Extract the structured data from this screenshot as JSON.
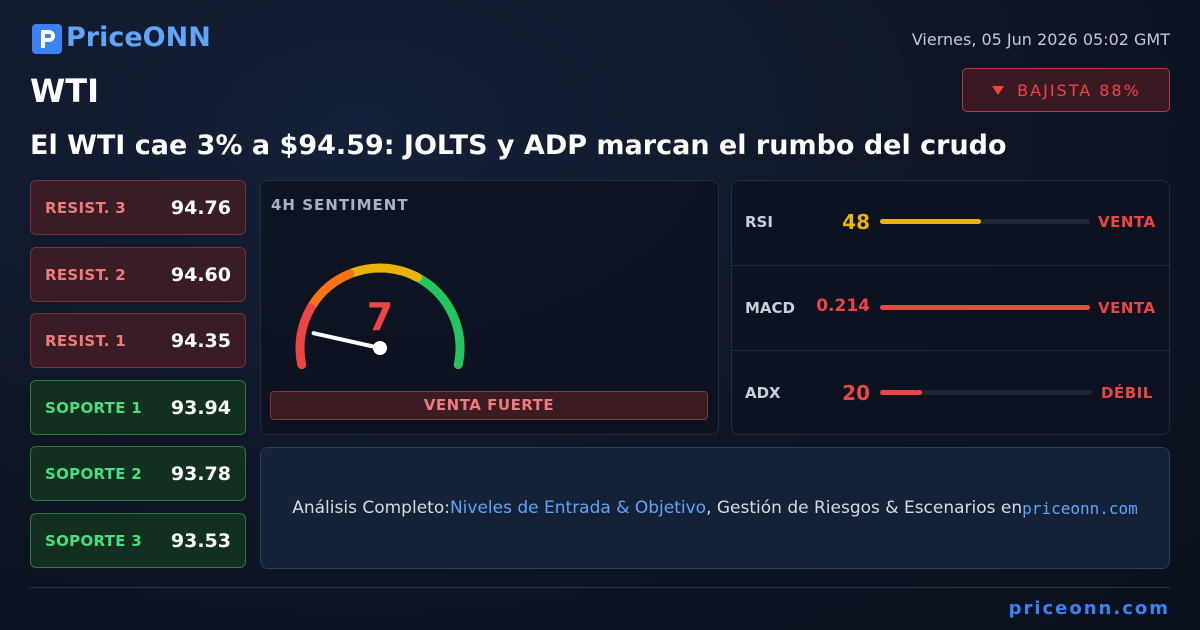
{
  "header": {
    "logo": "PriceONN",
    "date": "Viernes, 05 Jun 2026 05:02 GMT",
    "symbol": "WTI",
    "badge": "BAJISTA 88%"
  },
  "headline": "El WTI cae 3% a $94.59: JOLTS y ADP marcan el rumbo del crudo",
  "levels": [
    {
      "label": "RESIST. 3",
      "value": "94.76"
    },
    {
      "label": "RESIST. 2",
      "value": "94.60"
    },
    {
      "label": "RESIST. 1",
      "value": "94.35"
    },
    {
      "label": "SOPORTE 1",
      "value": "93.94"
    },
    {
      "label": "SOPORTE 2",
      "value": "93.78"
    },
    {
      "label": "SOPORTE 3",
      "value": "93.53"
    }
  ],
  "sentiment": {
    "title": "4H SENTIMENT",
    "value": 7,
    "verdict": "VENTA FUERTE"
  },
  "indicators": [
    {
      "name": "RSI",
      "value": 48,
      "signal": "VENTA"
    },
    {
      "name": "MACD",
      "value": 0.214,
      "signal": "VENTA"
    },
    {
      "name": "ADX",
      "value": 20,
      "signal": "DÉBIL"
    }
  ],
  "cta": {
    "prefix": "Análisis Completo:",
    "link": "Niveles de Entrada & Objetivo",
    "middle": ", Gestión de Riesgos & Escenarios en",
    "site": "priceonn.com"
  },
  "footer": "priceonn.com"
}
